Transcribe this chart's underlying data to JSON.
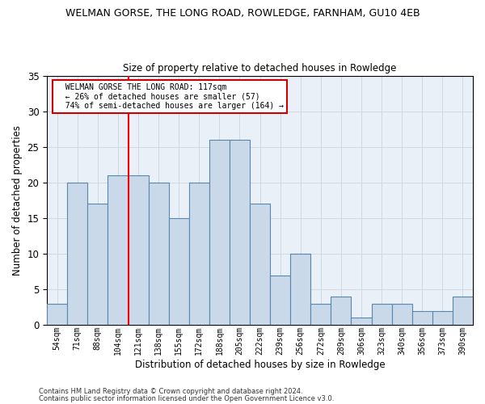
{
  "title": "WELMAN GORSE, THE LONG ROAD, ROWLEDGE, FARNHAM, GU10 4EB",
  "subtitle": "Size of property relative to detached houses in Rowledge",
  "xlabel": "Distribution of detached houses by size in Rowledge",
  "ylabel": "Number of detached properties",
  "bar_labels": [
    "54sqm",
    "71sqm",
    "88sqm",
    "104sqm",
    "121sqm",
    "138sqm",
    "155sqm",
    "172sqm",
    "188sqm",
    "205sqm",
    "222sqm",
    "239sqm",
    "256sqm",
    "272sqm",
    "289sqm",
    "306sqm",
    "323sqm",
    "340sqm",
    "356sqm",
    "373sqm",
    "390sqm"
  ],
  "bar_values": [
    3,
    20,
    17,
    21,
    21,
    20,
    15,
    20,
    26,
    26,
    17,
    7,
    10,
    3,
    4,
    1,
    3,
    3,
    2,
    2,
    4
  ],
  "bar_color": "#c9d9ea",
  "bar_edge_color": "#5588aa",
  "red_line_index": 4,
  "annotation_text": "  WELMAN GORSE THE LONG ROAD: 117sqm\n  ← 26% of detached houses are smaller (57)\n  74% of semi-detached houses are larger (164) →",
  "annotation_box_color": "#ffffff",
  "annotation_box_edge": "#cc0000",
  "ylim": [
    0,
    35
  ],
  "yticks": [
    0,
    5,
    10,
    15,
    20,
    25,
    30,
    35
  ],
  "footer1": "Contains HM Land Registry data © Crown copyright and database right 2024.",
  "footer2": "Contains public sector information licensed under the Open Government Licence v3.0.",
  "background_color": "#ffffff",
  "ax_background": "#eaf0f8",
  "grid_color": "#d0d8e0"
}
